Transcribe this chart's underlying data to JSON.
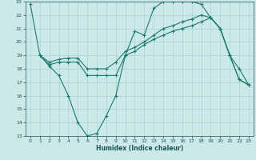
{
  "xlabel": "Humidex (Indice chaleur)",
  "xlim": [
    -0.5,
    23.5
  ],
  "ylim": [
    13,
    23
  ],
  "yticks": [
    13,
    14,
    15,
    16,
    17,
    18,
    19,
    20,
    21,
    22,
    23
  ],
  "xticks": [
    0,
    1,
    2,
    3,
    4,
    5,
    6,
    7,
    8,
    9,
    10,
    11,
    12,
    13,
    14,
    15,
    16,
    17,
    18,
    19,
    20,
    21,
    22,
    23
  ],
  "bg_color": "#cce8e8",
  "line_color": "#1a7a6e",
  "line1_x": [
    0,
    1,
    2,
    3,
    4,
    5,
    6,
    7,
    8,
    9,
    10,
    11,
    12,
    13,
    14,
    15,
    16,
    17,
    18,
    19,
    20,
    21,
    22,
    23
  ],
  "line1_y": [
    22.8,
    19,
    18.2,
    17.5,
    16,
    14,
    13,
    13.2,
    14.5,
    16,
    19,
    20.8,
    20.5,
    22.5,
    23,
    23,
    23,
    23,
    22.8,
    21.8,
    21,
    19,
    18,
    16.8
  ],
  "line2_x": [
    1,
    2,
    3,
    4,
    5,
    6,
    7,
    8,
    9,
    10,
    11,
    12,
    13,
    14,
    15,
    16,
    17,
    18,
    19,
    20,
    21,
    22,
    23
  ],
  "line2_y": [
    19,
    18.5,
    18.7,
    18.8,
    18.8,
    18.0,
    18.0,
    18.0,
    18.5,
    19.3,
    19.6,
    20.0,
    20.5,
    21.0,
    21.2,
    21.5,
    21.7,
    22.0,
    21.8,
    21.0,
    19.0,
    17.2,
    16.8
  ],
  "line3_x": [
    1,
    2,
    3,
    4,
    5,
    6,
    7,
    8,
    9,
    10,
    11,
    12,
    13,
    14,
    15,
    16,
    17,
    18,
    19,
    20,
    21,
    22,
    23
  ],
  "line3_y": [
    19,
    18.3,
    18.5,
    18.5,
    18.5,
    17.5,
    17.5,
    17.5,
    17.5,
    19.0,
    19.3,
    19.8,
    20.2,
    20.5,
    20.8,
    21.0,
    21.2,
    21.5,
    21.8,
    21.0,
    19.0,
    17.2,
    16.8
  ]
}
